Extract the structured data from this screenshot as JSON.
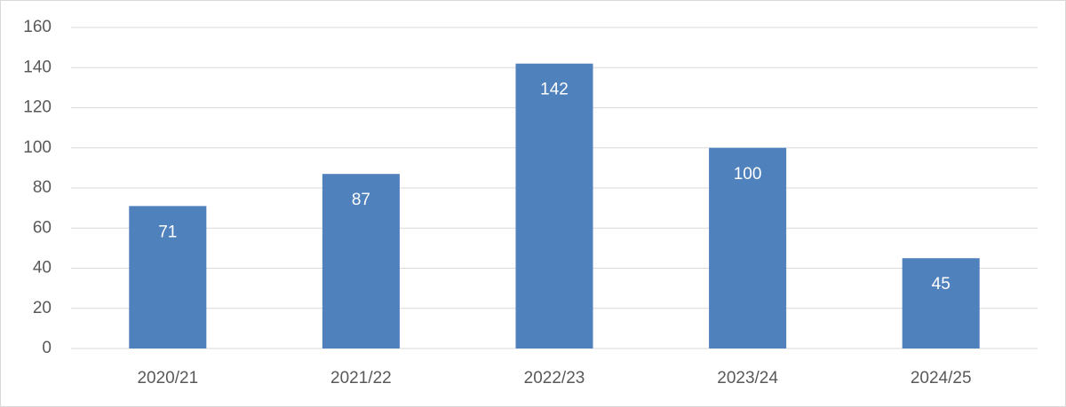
{
  "chart_data": {
    "type": "bar",
    "categories": [
      "2020/21",
      "2021/22",
      "2022/23",
      "2023/24",
      "2024/25"
    ],
    "values": [
      71,
      87,
      142,
      100,
      45
    ],
    "color": "#4f81bd",
    "ylim": [
      0,
      160
    ],
    "yticks": [
      0,
      20,
      40,
      60,
      80,
      100,
      120,
      140,
      160
    ],
    "grid": true,
    "data_labels": true
  }
}
